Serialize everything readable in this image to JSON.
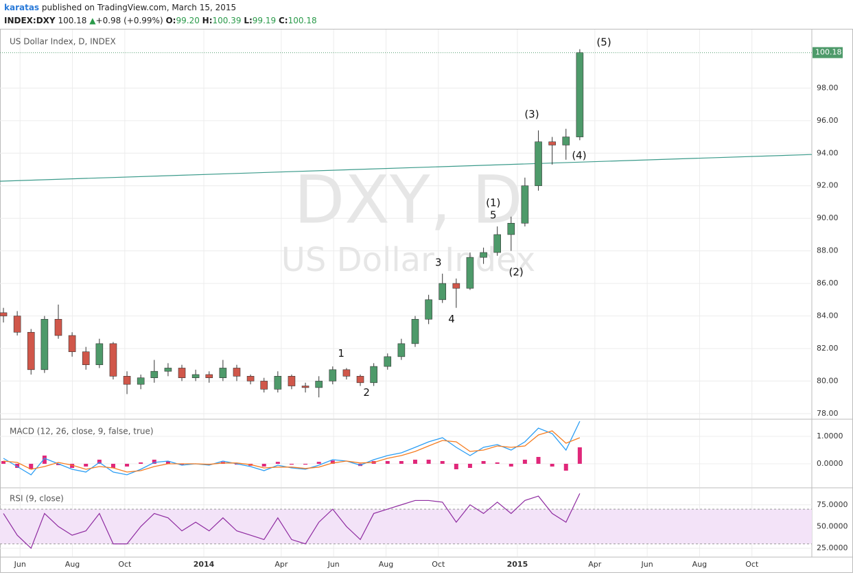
{
  "header": {
    "author": "karatas",
    "published": "published on TradingView.com, March 15, 2015",
    "symbol": "INDEX:DXY",
    "last": "100.18",
    "arrow": "▲",
    "change": "+0.98 (+0.99%)",
    "o_label": "O:",
    "o": "99.20",
    "h_label": "H:",
    "h": "100.39",
    "l_label": "L:",
    "l": "99.19",
    "c_label": "C:",
    "c": "100.18"
  },
  "chart_data": [
    {
      "type": "candlestick",
      "title": "US Dollar Index, D, INDEX",
      "watermark_symbol": "DXY, D",
      "watermark_name": "US Dollar Index",
      "x": [
        2013.361,
        2013.405,
        2013.449,
        2013.492,
        2013.536,
        2013.58,
        2013.624,
        2013.667,
        2013.711,
        2013.755,
        2013.799,
        2013.842,
        2013.886,
        2013.93,
        2013.974,
        2014.017,
        2014.061,
        2014.105,
        2014.149,
        2014.192,
        2014.236,
        2014.28,
        2014.324,
        2014.367,
        2014.411,
        2014.455,
        2014.499,
        2014.542,
        2014.586,
        2014.63,
        2014.674,
        2014.717,
        2014.761,
        2014.805,
        2014.849,
        2014.892,
        2014.936,
        2014.98,
        2015.024,
        2015.067,
        2015.111,
        2015.155,
        2015.199
      ],
      "open": [
        84.2,
        84.0,
        83.0,
        80.7,
        83.8,
        82.8,
        81.8,
        81.0,
        82.3,
        80.3,
        79.8,
        80.2,
        80.6,
        80.8,
        80.2,
        80.4,
        80.2,
        80.8,
        80.3,
        80.0,
        79.5,
        80.3,
        79.7,
        79.6,
        80.0,
        80.7,
        80.3,
        79.9,
        80.9,
        81.5,
        82.3,
        83.8,
        85.0,
        86.0,
        85.7,
        87.6,
        87.9,
        89.0,
        89.7,
        92.0,
        94.7,
        94.5,
        95.0
      ],
      "high": [
        84.5,
        84.3,
        83.2,
        84.0,
        84.7,
        83.0,
        82.1,
        82.6,
        82.4,
        80.6,
        80.4,
        81.3,
        81.1,
        81.0,
        80.7,
        80.6,
        81.3,
        81.0,
        80.4,
        80.2,
        80.6,
        80.4,
        79.9,
        80.3,
        80.9,
        80.8,
        80.4,
        81.1,
        81.7,
        82.6,
        84.0,
        85.3,
        86.6,
        86.3,
        87.9,
        88.2,
        89.5,
        90.1,
        92.5,
        95.4,
        95.0,
        95.5,
        100.39
      ],
      "low": [
        83.6,
        82.8,
        80.4,
        80.5,
        82.6,
        81.5,
        80.7,
        80.8,
        80.1,
        79.2,
        79.5,
        79.9,
        80.3,
        80.0,
        80.0,
        79.9,
        80.0,
        80.0,
        79.8,
        79.3,
        79.3,
        79.5,
        79.3,
        79.0,
        79.8,
        80.1,
        79.7,
        79.7,
        80.7,
        81.3,
        82.1,
        83.5,
        84.8,
        84.5,
        85.6,
        87.2,
        87.7,
        88.0,
        89.5,
        91.7,
        93.3,
        93.6,
        94.8
      ],
      "close": [
        84.0,
        83.0,
        80.7,
        83.8,
        82.8,
        81.8,
        81.0,
        82.3,
        80.3,
        79.8,
        80.2,
        80.6,
        80.8,
        80.2,
        80.4,
        80.2,
        80.8,
        80.3,
        80.0,
        79.5,
        80.3,
        79.7,
        79.6,
        80.0,
        80.7,
        80.3,
        79.9,
        80.9,
        81.5,
        82.3,
        83.8,
        85.0,
        86.0,
        85.7,
        87.6,
        87.9,
        89.0,
        89.7,
        92.0,
        94.7,
        94.5,
        95.0,
        100.18
      ],
      "up_color": "#4e9a6a",
      "down_color": "#d0574a",
      "wick_color": "#333333",
      "last_color": "#4e9a6a",
      "xlim": [
        2013.35,
        2015.939
      ],
      "ylim": [
        77.7,
        101.6
      ],
      "yticks": [
        {
          "value": 78,
          "label": "78.00"
        },
        {
          "value": 80,
          "label": "80.00"
        },
        {
          "value": 82,
          "label": "82.00"
        },
        {
          "value": 84,
          "label": "84.00"
        },
        {
          "value": 86,
          "label": "86.00"
        },
        {
          "value": 88,
          "label": "88.00"
        },
        {
          "value": 90,
          "label": "90.00"
        },
        {
          "value": 92,
          "label": "92.00"
        },
        {
          "value": 94,
          "label": "94.00"
        },
        {
          "value": 96,
          "label": "96.00"
        },
        {
          "value": 98,
          "label": "98.00"
        }
      ],
      "grid": true,
      "trend_line": {
        "x": [
          2013.35,
          2015.939
        ],
        "y": [
          92.28,
          93.92
        ],
        "color": "#3a9a8a"
      },
      "annotations": [
        {
          "text": "(5)",
          "x": 2015.276,
          "y": 100.8
        },
        {
          "text": "(3)",
          "x": 2015.046,
          "y": 96.37
        },
        {
          "text": "(4)",
          "x": 2015.197,
          "y": 93.84
        },
        {
          "text": "(1)",
          "x": 2014.923,
          "y": 90.93
        },
        {
          "text": "5",
          "x": 2014.923,
          "y": 90.17
        },
        {
          "text": "3",
          "x": 2014.748,
          "y": 87.26
        },
        {
          "text": "(2)",
          "x": 2014.996,
          "y": 86.67
        },
        {
          "text": "4",
          "x": 2014.79,
          "y": 83.8
        },
        {
          "text": "1",
          "x": 2014.438,
          "y": 81.69
        },
        {
          "text": "2",
          "x": 2014.519,
          "y": 79.28
        }
      ]
    },
    {
      "type": "macd",
      "title": "MACD (12, 26, close, 9, false, true)",
      "ylim": [
        -0.85,
        1.6
      ],
      "yticks": [
        {
          "value": 1,
          "label": "1.0000"
        },
        {
          "value": 0,
          "label": "0.0000"
        }
      ],
      "series": [
        {
          "style": "histogram",
          "color": "#e0287a",
          "values": [
            0.1,
            -0.15,
            -0.2,
            0.3,
            -0.05,
            -0.15,
            -0.1,
            0.15,
            -0.15,
            -0.1,
            0.05,
            0.15,
            0.1,
            -0.05,
            0,
            -0.03,
            0.07,
            -0.03,
            -0.07,
            -0.1,
            0.07,
            -0.03,
            -0.03,
            0.07,
            0.12,
            0,
            -0.08,
            0.1,
            0.1,
            0.1,
            0.15,
            0.15,
            0.1,
            -0.2,
            -0.15,
            0.1,
            0.05,
            -0.1,
            0.15,
            0.25,
            -0.1,
            -0.25,
            0.6
          ]
        },
        {
          "style": "line",
          "color": "#2a9df4",
          "values": [
            0.2,
            -0.1,
            -0.4,
            0.2,
            0.0,
            -0.2,
            -0.3,
            0.05,
            -0.3,
            -0.4,
            -0.2,
            0.05,
            0.1,
            -0.05,
            0.0,
            -0.05,
            0.1,
            0.0,
            -0.1,
            -0.25,
            -0.05,
            -0.15,
            -0.2,
            -0.05,
            0.15,
            0.1,
            -0.05,
            0.15,
            0.3,
            0.4,
            0.6,
            0.8,
            0.95,
            0.6,
            0.3,
            0.6,
            0.7,
            0.5,
            0.8,
            1.3,
            1.1,
            0.5,
            1.55
          ]
        },
        {
          "style": "line",
          "color": "#f57c20",
          "values": [
            0.1,
            0.05,
            -0.2,
            -0.1,
            0.05,
            -0.05,
            -0.2,
            -0.1,
            -0.15,
            -0.3,
            -0.25,
            -0.1,
            0.0,
            0.0,
            0.0,
            -0.02,
            0.03,
            0.03,
            -0.03,
            -0.15,
            -0.12,
            -0.12,
            -0.17,
            -0.12,
            0.03,
            0.1,
            0.03,
            0.05,
            0.2,
            0.3,
            0.45,
            0.65,
            0.85,
            0.8,
            0.45,
            0.5,
            0.65,
            0.6,
            0.65,
            1.05,
            1.2,
            0.75,
            0.95
          ]
        }
      ]
    },
    {
      "type": "rsi",
      "title": "RSI (9, close)",
      "ylim": [
        15.6,
        93.75
      ],
      "yticks": [
        {
          "value": 75,
          "label": "75.0000"
        },
        {
          "value": 50,
          "label": "50.0000"
        },
        {
          "value": 25,
          "label": "25.0000"
        }
      ],
      "band": [
        30,
        70
      ],
      "band_color": "#f3e3f8",
      "color": "#8e2aa0",
      "values": [
        65,
        40,
        25,
        65,
        50,
        40,
        45,
        65,
        30,
        30,
        50,
        65,
        60,
        45,
        55,
        45,
        60,
        45,
        40,
        35,
        60,
        35,
        30,
        55,
        70,
        50,
        35,
        65,
        70,
        75,
        80,
        80,
        78,
        55,
        75,
        65,
        78,
        65,
        80,
        85,
        65,
        55,
        88
      ],
      "xticks": [
        {
          "value": 2013.414,
          "label": "Jun"
        },
        {
          "value": 2013.581,
          "label": "Aug"
        },
        {
          "value": 2013.748,
          "label": "Oct"
        },
        2014,
        {
          "value": 2014.247,
          "label": "Apr"
        },
        {
          "value": 2014.414,
          "label": "Jun"
        },
        {
          "value": 2014.581,
          "label": "Aug"
        },
        {
          "value": 2014.748,
          "label": "Oct"
        },
        2015,
        {
          "value": 2015.247,
          "label": "Apr"
        },
        {
          "value": 2015.414,
          "label": "Jun"
        },
        {
          "value": 2015.581,
          "label": "Aug"
        },
        {
          "value": 2015.748,
          "label": "Oct"
        }
      ]
    }
  ]
}
